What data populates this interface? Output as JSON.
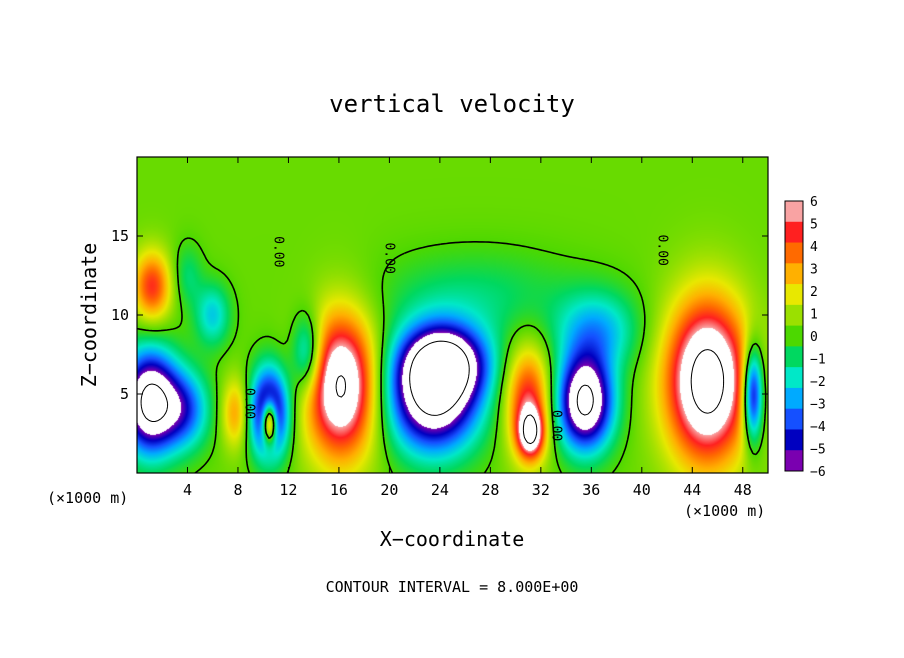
{
  "chart_data": {
    "type": "heatmap",
    "title": "vertical velocity",
    "xlabel": "X−coordinate",
    "ylabel": "Z−coordinate",
    "x_unit_left": "(×1000 m)",
    "x_unit_right": "(×1000 m)",
    "footer": "CONTOUR INTERVAL = 8.000E+00",
    "xlim": [
      0,
      50
    ],
    "ylim": [
      0,
      20
    ],
    "x_ticks": [
      4,
      8,
      12,
      16,
      20,
      24,
      28,
      32,
      36,
      40,
      44,
      48
    ],
    "y_ticks": [
      5,
      10,
      15
    ],
    "colorbar": {
      "min": -6,
      "max": 6,
      "labels": [
        "6",
        "5",
        "4",
        "3",
        "2",
        "1",
        "0",
        "−1",
        "−2",
        "−3",
        "−4",
        "−5",
        "−6"
      ],
      "colors": [
        "#f9a3a3",
        "#ff2020",
        "#ff6a00",
        "#ffb000",
        "#e8e800",
        "#9be000",
        "#4cd800",
        "#00d860",
        "#00e8c8",
        "#00aaff",
        "#1550ff",
        "#0000c0",
        "#7a00b0"
      ]
    },
    "contour_labels": [
      {
        "text": "0.00",
        "x": 11.3,
        "y": 14.0
      },
      {
        "text": "0.00",
        "x": 20.1,
        "y": 13.6
      },
      {
        "text": "0.00",
        "x": 41.7,
        "y": 14.1
      },
      {
        "text": "0.00",
        "x": 9.0,
        "y": 4.4
      },
      {
        "text": "0.00",
        "x": 33.3,
        "y": 3.0
      }
    ],
    "cells": [
      {
        "x": 16.2,
        "z": 5.5,
        "rx": 2.8,
        "rz": 4.5,
        "w": 8
      },
      {
        "x": 45.2,
        "z": 5.8,
        "rx": 3.2,
        "rz": 5.0,
        "w": 9
      },
      {
        "x": 1.2,
        "z": 11.8,
        "rx": 1.5,
        "rz": 2.2,
        "w": 4.5
      },
      {
        "x": 1.0,
        "z": 4.5,
        "rx": 2.2,
        "rz": 3.2,
        "w": -9
      },
      {
        "x": 3.8,
        "z": 4.0,
        "rx": 2.0,
        "rz": 2.5,
        "w": -4
      },
      {
        "x": 7.8,
        "z": 3.8,
        "rx": 1.1,
        "rz": 2.2,
        "w": 3
      },
      {
        "x": 10.5,
        "z": 3.8,
        "rx": 1.5,
        "rz": 2.8,
        "w": -8
      },
      {
        "x": 10.5,
        "z": 3.2,
        "rx": 0.6,
        "rz": 1.4,
        "w": 9
      },
      {
        "x": 23.5,
        "z": 5.0,
        "rx": 3.6,
        "rz": 3.6,
        "w": -9
      },
      {
        "x": 24.5,
        "z": 7.0,
        "rx": 3.2,
        "rz": 2.2,
        "w": -6
      },
      {
        "x": 31.0,
        "z": 4.5,
        "rx": 1.8,
        "rz": 3.5,
        "w": 5
      },
      {
        "x": 31.2,
        "z": 2.5,
        "rx": 1.0,
        "rz": 1.5,
        "w": 6
      },
      {
        "x": 35.5,
        "z": 4.5,
        "rx": 2.2,
        "rz": 3.0,
        "w": -9
      },
      {
        "x": 36.5,
        "z": 9.0,
        "rx": 3.2,
        "rz": 2.5,
        "w": -3
      },
      {
        "x": 48.8,
        "z": 5.0,
        "rx": 0.8,
        "rz": 3.0,
        "w": -7
      },
      {
        "x": 6.0,
        "z": 10.0,
        "rx": 1.4,
        "rz": 2.0,
        "w": -2.8
      },
      {
        "x": 13.5,
        "z": 7.5,
        "rx": 1.2,
        "rz": 2.5,
        "w": -4
      },
      {
        "x": 27.0,
        "z": 11.0,
        "rx": 8.0,
        "rz": 3.0,
        "w": -1.5
      },
      {
        "x": 4.0,
        "z": 12.5,
        "rx": 1.2,
        "rz": 2.0,
        "w": -1.5
      }
    ]
  }
}
